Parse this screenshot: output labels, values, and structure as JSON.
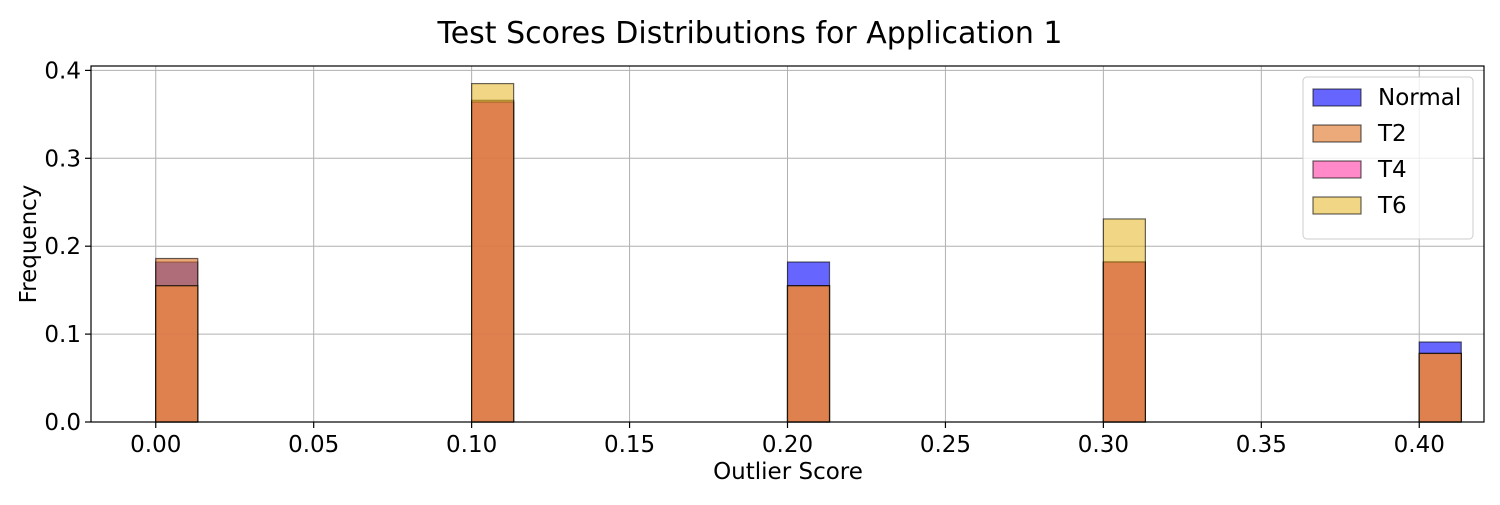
{
  "chart_data": {
    "type": "bar",
    "title": "Test Scores Distributions for Application 1",
    "xlabel": "Outlier Score",
    "ylabel": "Frequency",
    "xlim": [
      -0.0205,
      0.4205
    ],
    "ylim": [
      0,
      0.405
    ],
    "xticks": [
      "0.00",
      "0.05",
      "0.10",
      "0.15",
      "0.20",
      "0.25",
      "0.30",
      "0.35",
      "0.40"
    ],
    "yticks": [
      "0.0",
      "0.1",
      "0.2",
      "0.3",
      "0.4"
    ],
    "grid": true,
    "legend_position": "top-right",
    "bins": [
      0.0,
      0.1,
      0.2,
      0.3,
      0.4
    ],
    "bin_width": 0.0133,
    "series": [
      {
        "name": "Normal",
        "color": "#0000ff",
        "alpha": 0.6,
        "values": [
          0.182,
          0.364,
          0.182,
          0.182,
          0.091
        ]
      },
      {
        "name": "T2",
        "color": "#e07020",
        "alpha": 0.6,
        "values": [
          0.186,
          0.366,
          0.155,
          0.182,
          0.078
        ]
      },
      {
        "name": "T4",
        "color": "#ff1493",
        "alpha": 0.5,
        "values": [
          0.155,
          0.364,
          0.155,
          0.182,
          0.078
        ]
      },
      {
        "name": "T6",
        "color": "#e6b422",
        "alpha": 0.55,
        "values": [
          0.155,
          0.385,
          0.155,
          0.231,
          0.078
        ]
      }
    ]
  }
}
